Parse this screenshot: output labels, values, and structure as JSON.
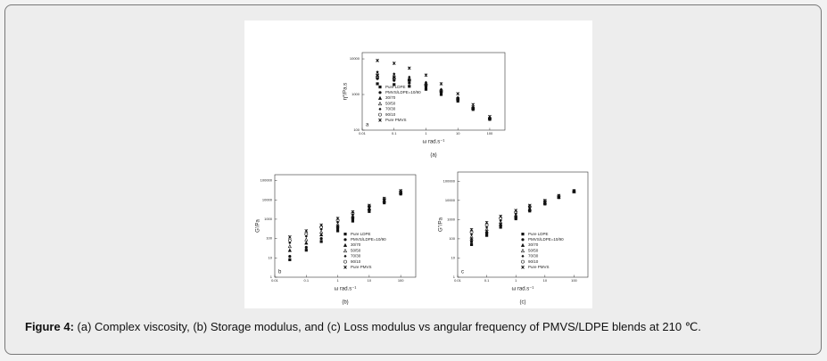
{
  "chart_data": [
    {
      "type": "scatter",
      "panel_label": "a",
      "subcaption": "(a)",
      "xlabel": "ω rad.s⁻¹",
      "ylabel": "η*/Pa.s",
      "xscale": "log",
      "yscale": "log",
      "xlim": [
        0.01,
        300
      ],
      "ylim": [
        100,
        15000
      ],
      "xticks": [
        0.01,
        0.1,
        1,
        10,
        100
      ],
      "yticks": [
        100,
        1000,
        10000
      ],
      "legend": "lower left",
      "x": [
        0.03,
        0.1,
        0.3,
        1,
        3,
        10,
        30,
        100
      ],
      "series": [
        {
          "name": "Pure LDPE",
          "color": "#111111",
          "marker": "square",
          "values": [
            2000,
            1900,
            1700,
            1400,
            1000,
            650,
            380,
            200
          ]
        },
        {
          "name": "PMVS/LDPE=10/90",
          "color": "#111111",
          "marker": "circle",
          "values": [
            2800,
            2500,
            2100,
            1600,
            1100,
            700,
            400,
            210
          ]
        },
        {
          "name": "30/70",
          "color": "#111111",
          "marker": "triangle",
          "values": [
            3500,
            3100,
            2600,
            1900,
            1250,
            760,
            420,
            220
          ]
        },
        {
          "name": "50/50",
          "color": "#111111",
          "marker": "triangle-open",
          "values": [
            4000,
            3500,
            2900,
            2100,
            1350,
            800,
            430,
            220
          ]
        },
        {
          "name": "70/30",
          "color": "#111111",
          "marker": "diamond",
          "values": [
            4300,
            3800,
            3100,
            2200,
            1400,
            820,
            440,
            225
          ]
        },
        {
          "name": "90/10",
          "color": "#111111",
          "marker": "circle-open",
          "values": [
            3000,
            2800,
            2500,
            1900,
            1300,
            780,
            420,
            215
          ]
        },
        {
          "name": "Pure PMVS",
          "color": "#111111",
          "marker": "star",
          "values": [
            9000,
            7500,
            5500,
            3500,
            2000,
            1050,
            520,
            240
          ]
        }
      ]
    },
    {
      "type": "scatter",
      "panel_label": "b",
      "subcaption": "(b)",
      "xlabel": "ω rad.s⁻¹",
      "ylabel": "G'/Pa",
      "xscale": "log",
      "yscale": "log",
      "xlim": [
        0.01,
        300
      ],
      "ylim": [
        1,
        200000
      ],
      "xticks": [
        0.01,
        0.1,
        1,
        10,
        100
      ],
      "yticks": [
        1,
        10,
        100,
        1000,
        10000,
        100000
      ],
      "legend": "lower right",
      "x": [
        0.03,
        0.1,
        0.3,
        1,
        3,
        10,
        30,
        100
      ],
      "series": [
        {
          "name": "Pure LDPE",
          "color": "#111111",
          "marker": "square",
          "values": [
            8,
            25,
            70,
            250,
            800,
            2500,
            7000,
            20000
          ]
        },
        {
          "name": "PMVS/LDPE=10/90",
          "color": "#111111",
          "marker": "circle",
          "values": [
            12,
            35,
            100,
            330,
            1000,
            3000,
            8000,
            22000
          ]
        },
        {
          "name": "30/70",
          "color": "#111111",
          "marker": "triangle",
          "values": [
            25,
            60,
            160,
            450,
            1300,
            3500,
            9000,
            24000
          ]
        },
        {
          "name": "50/50",
          "color": "#111111",
          "marker": "triangle-open",
          "values": [
            40,
            90,
            220,
            550,
            1500,
            3800,
            9500,
            25000
          ]
        },
        {
          "name": "70/30",
          "color": "#111111",
          "marker": "diamond",
          "values": [
            60,
            130,
            300,
            700,
            1700,
            4200,
            10000,
            26000
          ]
        },
        {
          "name": "90/10",
          "color": "#111111",
          "marker": "circle-open",
          "values": [
            80,
            170,
            380,
            850,
            2000,
            4600,
            11000,
            27000
          ]
        },
        {
          "name": "Pure PMVS",
          "color": "#111111",
          "marker": "star",
          "values": [
            120,
            250,
            500,
            1100,
            2400,
            5200,
            12000,
            30000
          ]
        }
      ]
    },
    {
      "type": "scatter",
      "panel_label": "c",
      "subcaption": "(c)",
      "xlabel": "ω rad.s⁻¹",
      "ylabel": "G''/Pa",
      "xscale": "log",
      "yscale": "log",
      "xlim": [
        0.01,
        300
      ],
      "ylim": [
        1,
        300000
      ],
      "xticks": [
        0.01,
        0.1,
        1,
        10,
        100
      ],
      "yticks": [
        1,
        10,
        100,
        1000,
        10000,
        100000
      ],
      "legend": "lower right",
      "x": [
        0.03,
        0.1,
        0.3,
        1,
        3,
        10,
        30,
        100
      ],
      "series": [
        {
          "name": "Pure LDPE",
          "color": "#111111",
          "marker": "square",
          "values": [
            50,
            150,
            400,
            1100,
            2800,
            6500,
            14000,
            28000
          ]
        },
        {
          "name": "PMVS/LDPE=10/90",
          "color": "#111111",
          "marker": "circle",
          "values": [
            70,
            190,
            480,
            1250,
            3000,
            7000,
            15000,
            29000
          ]
        },
        {
          "name": "30/70",
          "color": "#111111",
          "marker": "triangle",
          "values": [
            100,
            250,
            600,
            1500,
            3400,
            7500,
            15500,
            29500
          ]
        },
        {
          "name": "50/50",
          "color": "#111111",
          "marker": "triangle-open",
          "values": [
            130,
            320,
            750,
            1750,
            3800,
            8000,
            16000,
            30000
          ]
        },
        {
          "name": "70/30",
          "color": "#111111",
          "marker": "diamond",
          "values": [
            170,
            400,
            900,
            2000,
            4200,
            8500,
            16500,
            30500
          ]
        },
        {
          "name": "90/10",
          "color": "#111111",
          "marker": "circle-open",
          "values": [
            220,
            520,
            1150,
            2400,
            4700,
            9200,
            17000,
            31000
          ]
        },
        {
          "name": "Pure PMVS",
          "color": "#111111",
          "marker": "star",
          "values": [
            300,
            700,
            1500,
            3000,
            5500,
            10000,
            18000,
            32000
          ]
        }
      ]
    }
  ],
  "caption": {
    "label": "Figure 4:",
    "text": "(a) Complex viscosity, (b) Storage modulus, and (c) Loss modulus vs angular frequency of PMVS/LDPE blends at 210 ℃."
  }
}
